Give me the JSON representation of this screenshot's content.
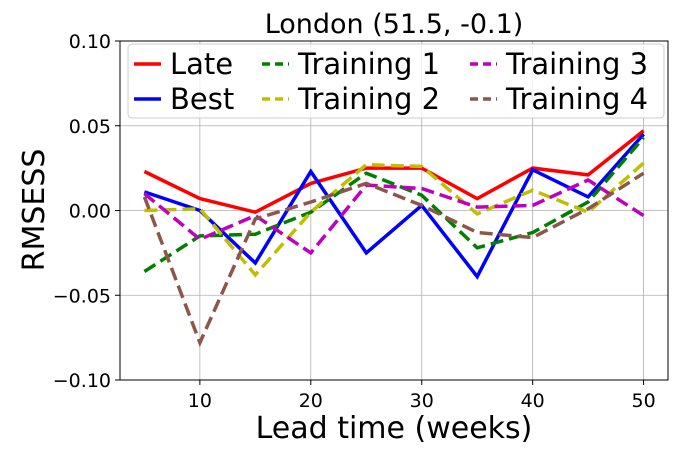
{
  "chart_data": {
    "type": "line",
    "title": "London (51.5, -0.1)",
    "xlabel": "Lead time (weeks)",
    "ylabel": "RMSESS",
    "xlim": [
      2.8,
      52.2
    ],
    "ylim": [
      -0.1,
      0.1
    ],
    "x_ticks": [
      10,
      20,
      30,
      40,
      50
    ],
    "x_tick_labels": [
      "10",
      "20",
      "30",
      "40",
      "50"
    ],
    "y_ticks": [
      -0.1,
      -0.05,
      0.0,
      0.05,
      0.1
    ],
    "y_tick_labels": [
      "−0.10",
      "−0.05",
      "0.00",
      "0.05",
      "0.10"
    ],
    "grid": true,
    "legend_position": "top",
    "x": [
      5,
      10,
      15,
      20,
      25,
      30,
      35,
      40,
      45,
      50
    ],
    "series": [
      {
        "name": "Late",
        "color": "#ff0000",
        "style": "solid",
        "values": [
          0.023,
          0.007,
          -0.001,
          0.016,
          0.025,
          0.025,
          0.007,
          0.025,
          0.021,
          0.047
        ]
      },
      {
        "name": "Best",
        "color": "#0000ff",
        "style": "solid",
        "values": [
          0.011,
          0.0,
          -0.031,
          0.023,
          -0.025,
          0.003,
          -0.039,
          0.024,
          0.008,
          0.045
        ]
      },
      {
        "name": "Training 1",
        "color": "#008000",
        "style": "dashed",
        "values": [
          -0.036,
          -0.015,
          -0.014,
          -0.001,
          0.022,
          0.009,
          -0.022,
          -0.013,
          0.005,
          0.043
        ]
      },
      {
        "name": "Training 2",
        "color": "#bfbf00",
        "style": "dashed",
        "values": [
          0.0,
          0.001,
          -0.038,
          -0.001,
          0.027,
          0.026,
          -0.002,
          0.012,
          -0.001,
          0.028
        ]
      },
      {
        "name": "Training 3",
        "color": "#bf00bf",
        "style": "dashed",
        "values": [
          0.01,
          -0.017,
          -0.003,
          -0.025,
          0.015,
          0.013,
          0.002,
          0.003,
          0.018,
          -0.003
        ]
      },
      {
        "name": "Training 4",
        "color": "#8c564b",
        "style": "dashed",
        "values": [
          0.008,
          -0.078,
          -0.005,
          0.005,
          0.016,
          0.003,
          -0.013,
          -0.016,
          0.001,
          0.022
        ]
      }
    ]
  }
}
